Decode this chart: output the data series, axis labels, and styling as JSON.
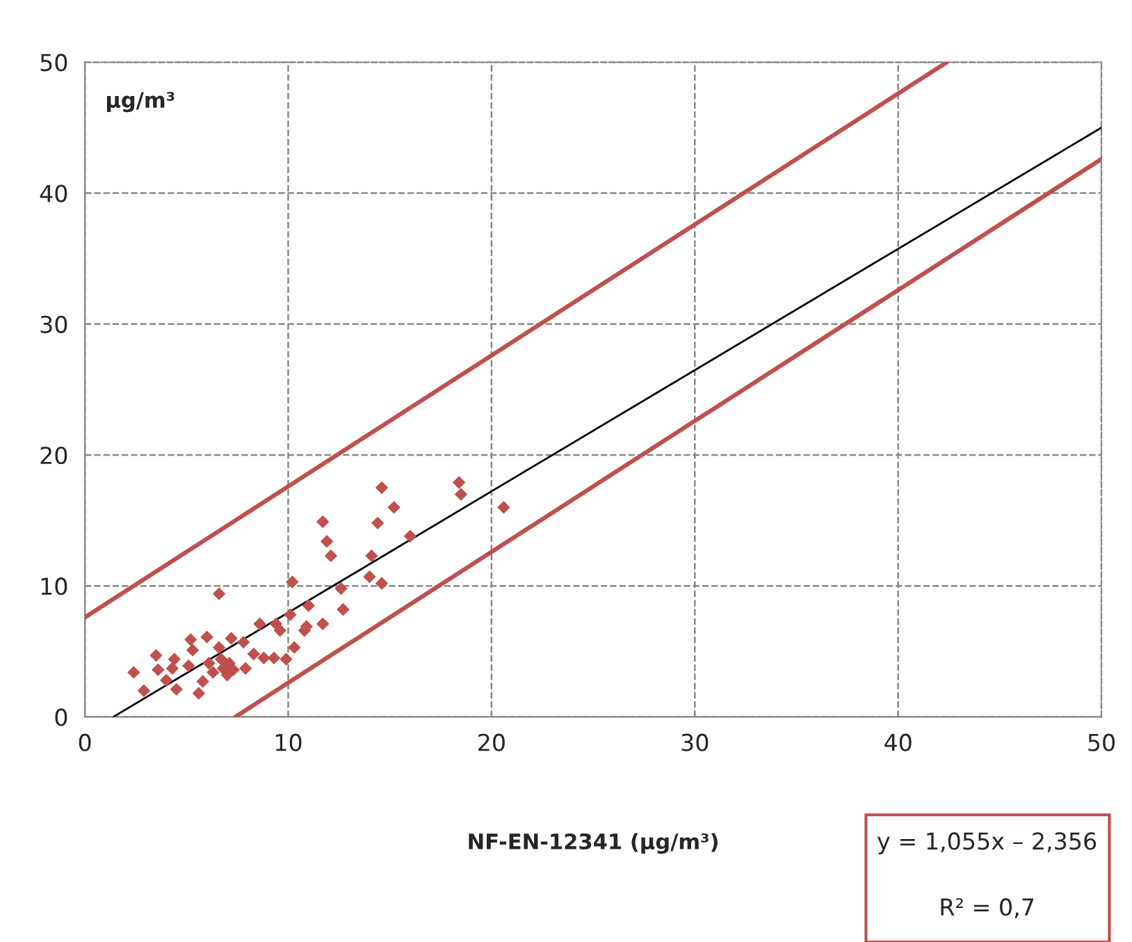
{
  "chart_data": {
    "type": "scatter",
    "xlabel": "NF-EN-12341 (µg/m³)",
    "ylabel": "µg/m³",
    "xlim": [
      0,
      50
    ],
    "ylim": [
      0,
      50
    ],
    "xticks": [
      0,
      10,
      20,
      30,
      40,
      50
    ],
    "yticks": [
      0,
      10,
      20,
      30,
      40,
      50
    ],
    "grid": true,
    "annotations": [
      "y = 1,055x – 2,356",
      "R² = 0,7"
    ],
    "series": [
      {
        "marker": "diamond",
        "color": "#c0504d",
        "x": [
          2.4,
          2.9,
          3.5,
          3.6,
          4.0,
          4.4,
          4.5,
          4.3,
          5.2,
          5.3,
          5.1,
          5.6,
          5.8,
          6.0,
          6.1,
          6.3,
          6.6,
          6.6,
          6.7,
          6.8,
          7.0,
          7.1,
          7.2,
          7.3,
          7.8,
          7.9,
          8.3,
          8.6,
          8.8,
          9.3,
          9.4,
          9.6,
          9.9,
          10.1,
          10.2,
          10.3,
          10.8,
          11.0,
          10.9,
          11.7,
          11.7,
          11.9,
          12.1,
          12.6,
          12.7,
          14.0,
          14.1,
          14.4,
          14.6,
          14.6,
          15.2,
          16.0,
          18.4,
          18.5,
          20.6
        ],
        "values": [
          3.4,
          2.0,
          4.7,
          3.6,
          2.8,
          4.4,
          2.1,
          3.7,
          5.9,
          5.1,
          3.9,
          1.8,
          2.7,
          6.1,
          4.1,
          3.4,
          9.4,
          5.3,
          4.4,
          3.7,
          3.2,
          4.1,
          6.0,
          3.6,
          5.7,
          3.7,
          4.8,
          7.1,
          4.5,
          4.5,
          7.1,
          6.6,
          4.4,
          7.8,
          10.3,
          5.3,
          6.6,
          8.5,
          6.9,
          7.1,
          14.9,
          13.4,
          12.3,
          9.8,
          8.2,
          10.7,
          12.3,
          14.8,
          10.2,
          17.5,
          16.0,
          13.8,
          17.9,
          17.0,
          16.0
        ]
      },
      {
        "type": "line",
        "color": "#000000",
        "x": [
          1.4,
          50
        ],
        "values": [
          0,
          45
        ]
      },
      {
        "type": "line",
        "color": "#c0504d",
        "x": [
          0,
          42.4
        ],
        "values": [
          7.6,
          50
        ]
      },
      {
        "type": "line",
        "color": "#c0504d",
        "x": [
          7.4,
          50
        ],
        "values": [
          0,
          42.6
        ]
      }
    ]
  }
}
